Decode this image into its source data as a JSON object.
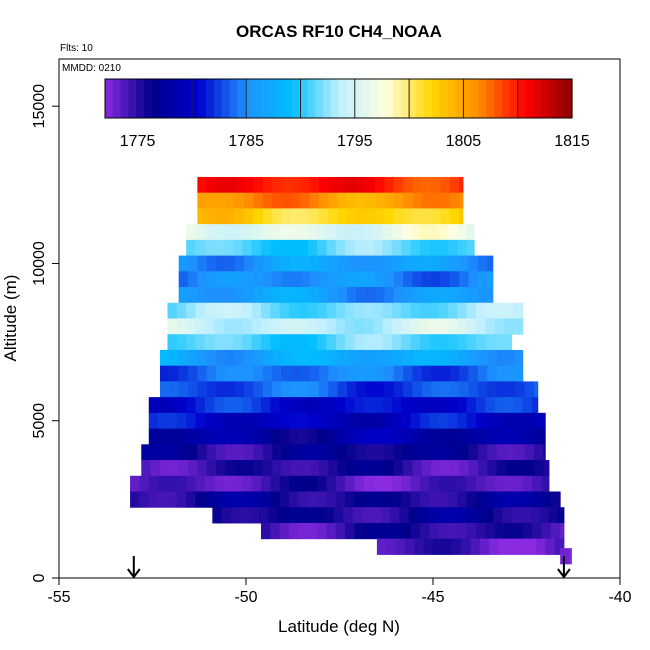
{
  "chart_data": {
    "type": "heatmap",
    "title": "ORCAS RF10 CH4_NOAA",
    "annotations": [
      "Flts: 10",
      "MMDD: 0210"
    ],
    "xlabel": "Latitude (deg N)",
    "ylabel": "Altitude (m)",
    "xlim": [
      -55,
      -40
    ],
    "ylim": [
      0,
      16500
    ],
    "x_ticks": [
      -55,
      -50,
      -45,
      -40
    ],
    "x_tick_labels": [
      "-55",
      "-50",
      "-45",
      "-40"
    ],
    "y_ticks": [
      0,
      5000,
      10000,
      15000
    ],
    "y_tick_labels": [
      "0",
      "5000",
      "10000",
      "15000"
    ],
    "colorbar": {
      "range": [
        1772,
        1815
      ],
      "ticks": [
        1775,
        1785,
        1795,
        1805,
        1815
      ],
      "tick_labels": [
        "1775",
        "1785",
        "1795",
        "1805",
        "1815"
      ],
      "colors": [
        "#8a2be2",
        "#00008b",
        "#0000cd",
        "#1e90ff",
        "#00bfff",
        "#bfefff",
        "#ffffe0",
        "#ffd700",
        "#ff8c00",
        "#ff0000",
        "#8b0000"
      ]
    },
    "latitude_range_m": [
      -53.3,
      -41.3
    ],
    "layers": [
      {
        "alt": 12500,
        "lat_min": -51.3,
        "lat_max": -44.2,
        "value": 1810
      },
      {
        "alt": 12000,
        "lat_min": -51.3,
        "lat_max": -44.2,
        "value": 1806
      },
      {
        "alt": 11500,
        "lat_min": -51.3,
        "lat_max": -44.2,
        "value": 1802
      },
      {
        "alt": 11000,
        "lat_min": -51.6,
        "lat_max": -43.9,
        "value": 1796
      },
      {
        "alt": 10500,
        "lat_min": -51.6,
        "lat_max": -43.9,
        "value": 1791
      },
      {
        "alt": 10000,
        "lat_min": -51.8,
        "lat_max": -43.4,
        "value": 1786
      },
      {
        "alt": 9500,
        "lat_min": -51.8,
        "lat_max": -43.4,
        "value": 1785
      },
      {
        "alt": 9000,
        "lat_min": -51.8,
        "lat_max": -43.4,
        "value": 1786
      },
      {
        "alt": 8500,
        "lat_min": -52.1,
        "lat_max": -42.6,
        "value": 1792
      },
      {
        "alt": 8000,
        "lat_min": -52.1,
        "lat_max": -42.6,
        "value": 1794
      },
      {
        "alt": 7500,
        "lat_min": -52.1,
        "lat_max": -42.9,
        "value": 1791
      },
      {
        "alt": 7000,
        "lat_min": -52.3,
        "lat_max": -42.6,
        "value": 1787
      },
      {
        "alt": 6500,
        "lat_min": -52.3,
        "lat_max": -42.6,
        "value": 1784
      },
      {
        "alt": 6000,
        "lat_min": -52.3,
        "lat_max": -42.2,
        "value": 1783
      },
      {
        "alt": 5500,
        "lat_min": -52.6,
        "lat_max": -42.2,
        "value": 1781
      },
      {
        "alt": 5000,
        "lat_min": -52.6,
        "lat_max": -42.0,
        "value": 1780
      },
      {
        "alt": 4500,
        "lat_min": -52.6,
        "lat_max": -42.0,
        "value": 1778
      },
      {
        "alt": 4000,
        "lat_min": -52.8,
        "lat_max": -42.0,
        "value": 1776
      },
      {
        "alt": 3500,
        "lat_min": -52.8,
        "lat_max": -41.9,
        "value": 1775
      },
      {
        "alt": 3000,
        "lat_min": -53.1,
        "lat_max": -41.9,
        "value": 1774
      },
      {
        "alt": 2500,
        "lat_min": -53.1,
        "lat_max": -41.6,
        "value": 1776
      },
      {
        "alt": 2000,
        "lat_min": -50.9,
        "lat_max": -41.5,
        "value": 1776
      },
      {
        "alt": 1500,
        "lat_min": -49.6,
        "lat_max": -41.5,
        "value": 1775
      },
      {
        "alt": 1000,
        "lat_min": -46.5,
        "lat_max": -41.5,
        "value": 1774
      },
      {
        "alt": 700,
        "lat_min": -41.6,
        "lat_max": -41.3,
        "value": 1773
      }
    ],
    "markers": [
      {
        "type": "arrow-down",
        "lat": -53.0
      },
      {
        "type": "arrow-down",
        "lat": -41.5
      }
    ]
  }
}
